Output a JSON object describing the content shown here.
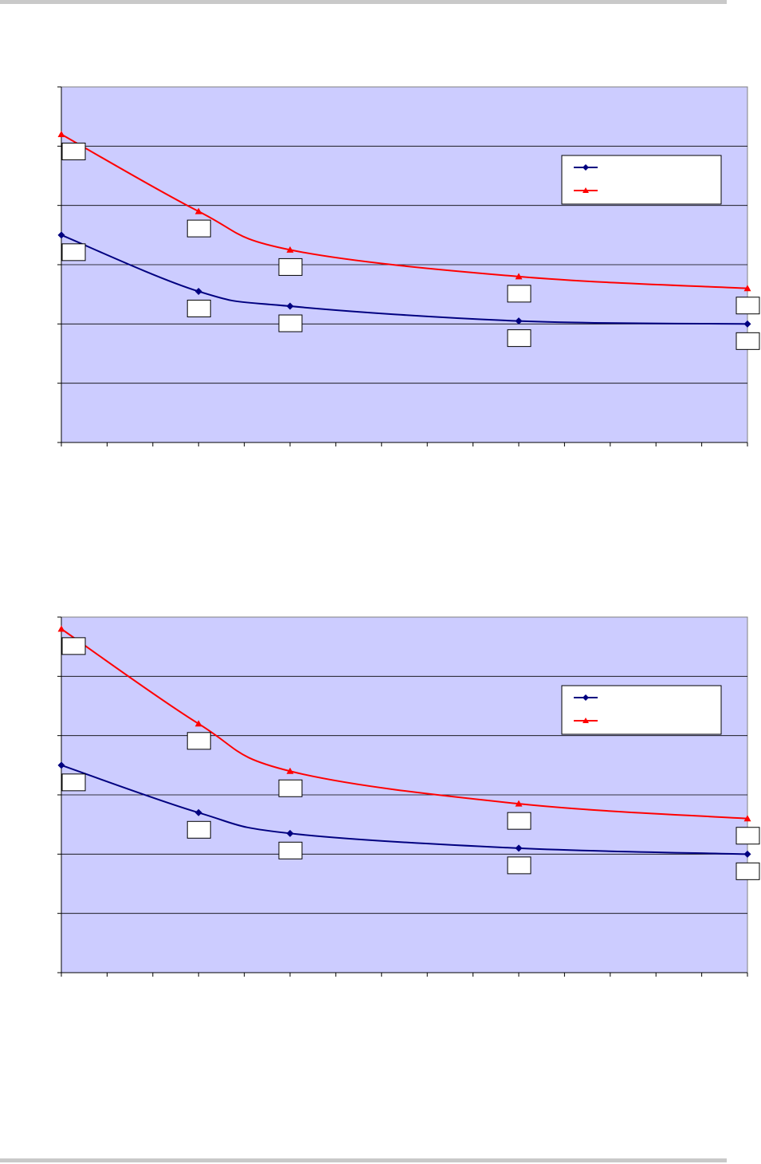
{
  "colors": {
    "plot_background": "#ccccff",
    "series_1": "#000080",
    "series_2": "#ff0000",
    "gridline": "#000000"
  },
  "chart_data": [
    {
      "type": "line",
      "ylim": [
        0,
        6
      ],
      "grid": true,
      "legend_position": "top-right",
      "x": [
        0,
        3,
        5,
        10,
        15
      ],
      "xlim": [
        0,
        15
      ],
      "x_ticks": [
        0,
        1,
        2,
        3,
        4,
        5,
        6,
        7,
        8,
        9,
        10,
        11,
        12,
        13,
        14,
        15
      ],
      "y_ticks": [
        0,
        1,
        2,
        3,
        4,
        5,
        6
      ],
      "series": [
        {
          "values": [
            3.5,
            2.55,
            2.3,
            2.05,
            2.0
          ],
          "marker": "diamond",
          "color": "#000080"
        },
        {
          "values": [
            5.2,
            3.9,
            3.25,
            2.8,
            2.6
          ],
          "marker": "triangle",
          "color": "#ff0000"
        }
      ]
    },
    {
      "type": "line",
      "ylim": [
        0,
        6
      ],
      "grid": true,
      "legend_position": "top-right",
      "x": [
        0,
        3,
        5,
        10,
        15
      ],
      "xlim": [
        0,
        15
      ],
      "x_ticks": [
        0,
        1,
        2,
        3,
        4,
        5,
        6,
        7,
        8,
        9,
        10,
        11,
        12,
        13,
        14,
        15
      ],
      "y_ticks": [
        0,
        1,
        2,
        3,
        4,
        5,
        6
      ],
      "series": [
        {
          "values": [
            3.5,
            2.7,
            2.35,
            2.1,
            2.0
          ],
          "marker": "diamond",
          "color": "#000080"
        },
        {
          "values": [
            5.8,
            4.2,
            3.4,
            2.85,
            2.6
          ],
          "marker": "triangle",
          "color": "#ff0000"
        }
      ]
    }
  ]
}
